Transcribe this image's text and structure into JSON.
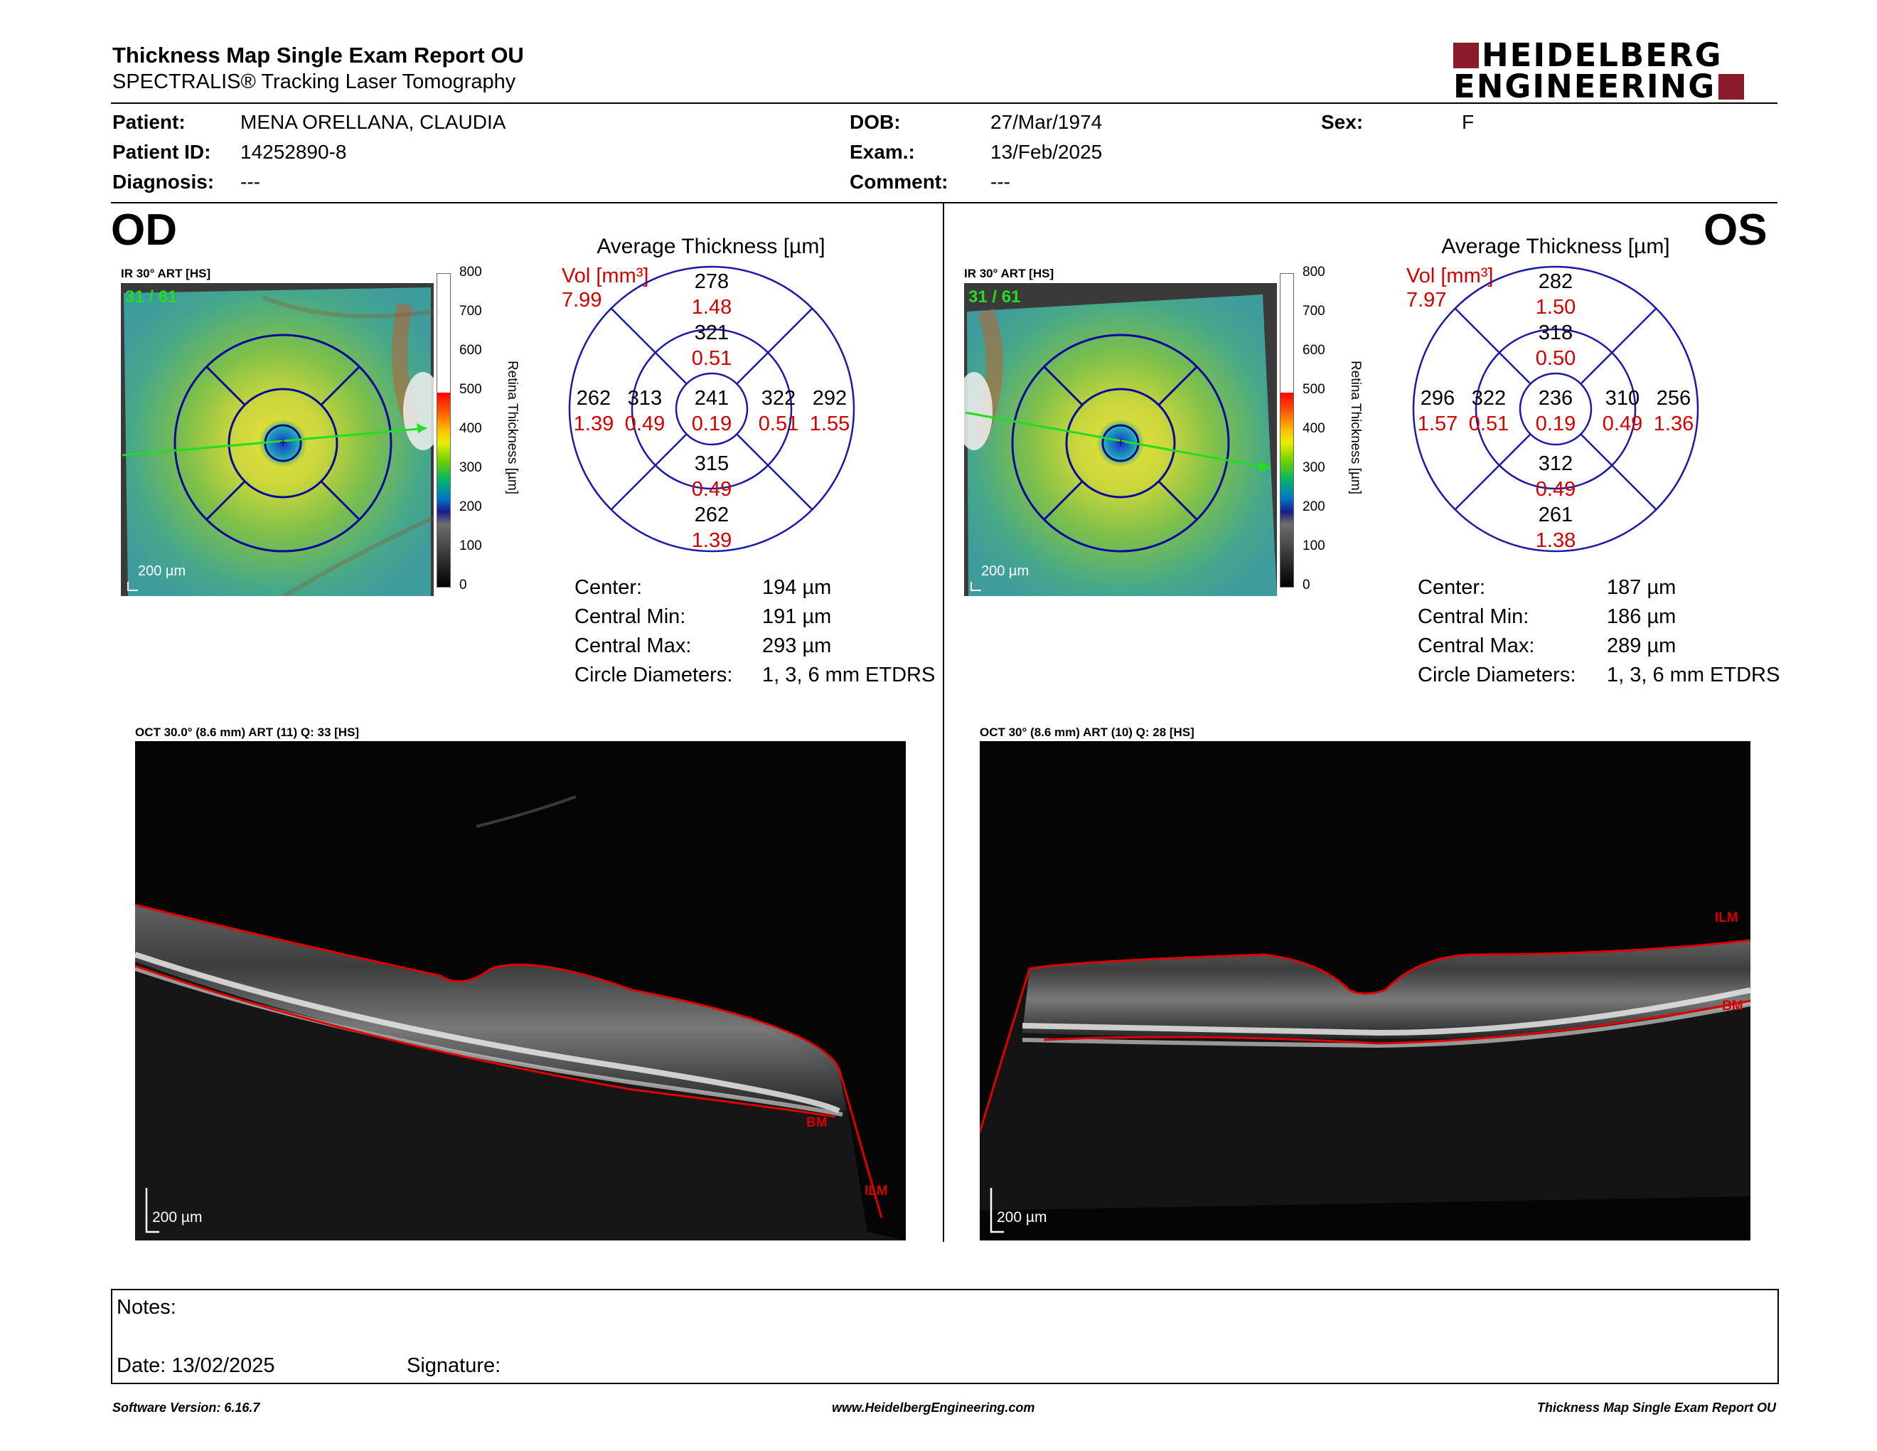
{
  "header": {
    "title": "Thickness Map Single Exam Report OU",
    "subtitle": "SPECTRALIS® Tracking Laser Tomography",
    "logo_line1": "HEIDELBERG",
    "logo_line2": "ENGINEERING"
  },
  "patient": {
    "patient_label": "Patient:",
    "patient_value": "MENA ORELLANA, CLAUDIA",
    "id_label": "Patient ID:",
    "id_value": "14252890-8",
    "diag_label": "Diagnosis:",
    "diag_value": "---",
    "dob_label": "DOB:",
    "dob_value": "27/Mar/1974",
    "exam_label": "Exam.:",
    "exam_value": "13/Feb/2025",
    "comment_label": "Comment:",
    "comment_value": "---",
    "sex_label": "Sex:",
    "sex_value": "F"
  },
  "colorbar": {
    "ticks": [
      "800",
      "700",
      "600",
      "500",
      "400",
      "300",
      "200",
      "100",
      "0"
    ],
    "label": "Retina  Thickness [µm]"
  },
  "od": {
    "eye": "OD",
    "ir_label": "IR 30° ART [HS]",
    "frame": "31 / 61",
    "scale": "200 µm",
    "avg_title": "Average Thickness [µm]",
    "vol_label": "Vol [mm³]",
    "vol_value": "7.99",
    "etdrs": {
      "center_t": "241",
      "center_v": "0.19",
      "inner_sup_t": "321",
      "inner_sup_v": "0.51",
      "inner_inf_t": "315",
      "inner_inf_v": "0.49",
      "inner_left_t": "313",
      "inner_left_v": "0.49",
      "inner_right_t": "322",
      "inner_right_v": "0.51",
      "outer_sup_t": "278",
      "outer_sup_v": "1.48",
      "outer_inf_t": "262",
      "outer_inf_v": "1.39",
      "outer_left_t": "262",
      "outer_left_v": "1.39",
      "outer_right_t": "292",
      "outer_right_v": "1.55"
    },
    "stats": {
      "center_label": "Center:",
      "center_value": "194 µm",
      "min_label": "Central Min:",
      "min_value": "191 µm",
      "max_label": "Central Max:",
      "max_value": "293 µm",
      "diam_label": "Circle Diameters:",
      "diam_value": "1, 3, 6 mm ETDRS"
    },
    "oct_label": "OCT 30.0° (8.6 mm) ART (11) Q: 33 [HS]",
    "oct_scale": "200 µm",
    "layer_bm": "BM",
    "layer_ilm": "ILM"
  },
  "os": {
    "eye": "OS",
    "ir_label": "IR 30° ART [HS]",
    "frame": "31 / 61",
    "scale": "200 µm",
    "avg_title": "Average Thickness [µm]",
    "vol_label": "Vol [mm³]",
    "vol_value": "7.97",
    "etdrs": {
      "center_t": "236",
      "center_v": "0.19",
      "inner_sup_t": "318",
      "inner_sup_v": "0.50",
      "inner_inf_t": "312",
      "inner_inf_v": "0.49",
      "inner_left_t": "322",
      "inner_left_v": "0.51",
      "inner_right_t": "310",
      "inner_right_v": "0.49",
      "outer_sup_t": "282",
      "outer_sup_v": "1.50",
      "outer_inf_t": "261",
      "outer_inf_v": "1.38",
      "outer_left_t": "296",
      "outer_left_v": "1.57",
      "outer_right_t": "256",
      "outer_right_v": "1.36"
    },
    "stats": {
      "center_label": "Center:",
      "center_value": "187 µm",
      "min_label": "Central Min:",
      "min_value": "186 µm",
      "max_label": "Central Max:",
      "max_value": "289 µm",
      "diam_label": "Circle Diameters:",
      "diam_value": "1, 3, 6 mm ETDRS"
    },
    "oct_label": "OCT 30° (8.6 mm) ART (10) Q: 28 [HS]",
    "oct_scale": "200 µm",
    "layer_ilm": "ILM",
    "layer_bm": "BM"
  },
  "notes": {
    "notes_label": "Notes:",
    "date_label": "Date: 13/02/2025",
    "signature_label": "Signature:"
  },
  "footer": {
    "software": "Software Version: 6.16.7",
    "website": "www.HeidelbergEngineering.com",
    "report": "Thickness Map Single Exam Report OU"
  },
  "colors": {
    "accent_red": "#d40000",
    "etdrs_blue": "#1a1aa8",
    "logo_red": "#8b1a2b",
    "scan_green": "#22dd22"
  }
}
